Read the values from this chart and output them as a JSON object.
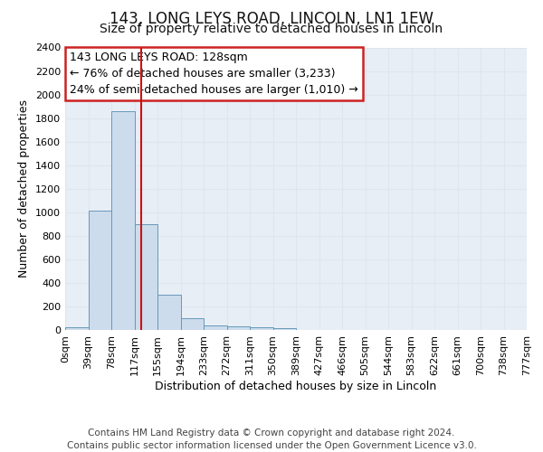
{
  "title": "143, LONG LEYS ROAD, LINCOLN, LN1 1EW",
  "subtitle": "Size of property relative to detached houses in Lincoln",
  "xlabel": "Distribution of detached houses by size in Lincoln",
  "ylabel": "Number of detached properties",
  "bin_labels": [
    "0sqm",
    "39sqm",
    "78sqm",
    "117sqm",
    "155sqm",
    "194sqm",
    "233sqm",
    "272sqm",
    "311sqm",
    "350sqm",
    "389sqm",
    "427sqm",
    "466sqm",
    "505sqm",
    "544sqm",
    "583sqm",
    "622sqm",
    "661sqm",
    "700sqm",
    "738sqm",
    "777sqm"
  ],
  "bin_values": [
    20,
    1010,
    1860,
    900,
    300,
    100,
    40,
    30,
    20,
    15,
    0,
    0,
    0,
    0,
    0,
    0,
    0,
    0,
    0,
    0
  ],
  "bar_color": "#ccdcec",
  "bar_edge_color": "#6699bb",
  "annotation_line1": "143 LONG LEYS ROAD: 128sqm",
  "annotation_line2": "← 76% of detached houses are smaller (3,233)",
  "annotation_line3": "24% of semi-detached houses are larger (1,010) →",
  "annotation_box_facecolor": "#ffffff",
  "annotation_box_edgecolor": "#cc2222",
  "ylim": [
    0,
    2400
  ],
  "yticks": [
    0,
    200,
    400,
    600,
    800,
    1000,
    1200,
    1400,
    1600,
    1800,
    2000,
    2200,
    2400
  ],
  "plot_bg_color": "#e8eef5",
  "fig_bg_color": "#ffffff",
  "grid_color": "#dde6ef",
  "title_fontsize": 12,
  "subtitle_fontsize": 10,
  "axis_label_fontsize": 9,
  "tick_fontsize": 8,
  "annotation_fontsize": 9,
  "footer_fontsize": 7.5,
  "red_line_color": "#cc1111",
  "footer_line1": "Contains HM Land Registry data © Crown copyright and database right 2024.",
  "footer_line2": "Contains public sector information licensed under the Open Government Licence v3.0."
}
